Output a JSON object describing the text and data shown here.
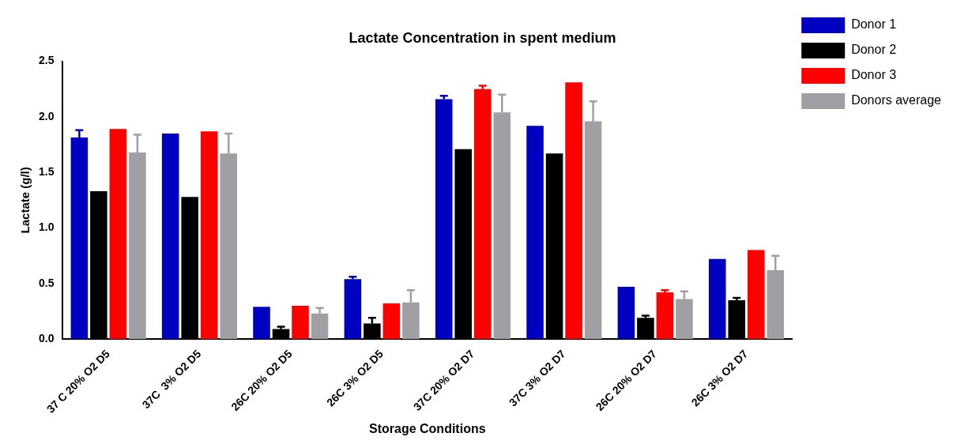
{
  "chart_data": {
    "type": "bar",
    "title": "Lactate Concentration in spent medium",
    "xlabel": "Storage Conditions",
    "ylabel": "Lactate (g/l)",
    "categories": [
      "37 C 20% O2 D5",
      "37C  3% O2 D5",
      "26C 20% O2 D5",
      "26C 3% O2 D5",
      "37C 20% O2 D7",
      "37C 3% O2 D7",
      "26C 20% O2 D7",
      "26C 3% O2 D7"
    ],
    "series": [
      {
        "name": "Donor 1",
        "color": "#0000c0",
        "values": [
          1.815,
          1.85,
          0.29,
          0.54,
          2.16,
          1.92,
          0.47,
          0.72
        ],
        "errors": [
          [
            1.815,
            1.88
          ],
          null,
          null,
          [
            0.54,
            0.56
          ],
          [
            2.16,
            2.19
          ],
          null,
          null,
          null
        ]
      },
      {
        "name": "Donor 2",
        "color": "#000000",
        "values": [
          1.33,
          1.28,
          0.09,
          0.14,
          1.71,
          1.67,
          0.19,
          0.35
        ],
        "errors": [
          null,
          null,
          [
            0.09,
            0.11
          ],
          [
            0.14,
            0.19
          ],
          null,
          null,
          [
            0.19,
            0.21
          ],
          [
            0.35,
            0.37
          ]
        ]
      },
      {
        "name": "Donor 3",
        "color": "#ff0000",
        "values": [
          1.89,
          1.87,
          0.3,
          0.32,
          2.25,
          2.31,
          0.42,
          0.8
        ],
        "errors": [
          null,
          null,
          null,
          null,
          [
            2.25,
            2.28
          ],
          null,
          [
            0.42,
            0.44
          ],
          null
        ]
      },
      {
        "name": "Donors average",
        "color": "#a0a0a4",
        "values": [
          1.68,
          1.67,
          0.23,
          0.33,
          2.04,
          1.96,
          0.36,
          0.62
        ],
        "errors": [
          [
            1.68,
            1.84
          ],
          [
            1.67,
            1.85
          ],
          [
            0.23,
            0.28
          ],
          [
            0.33,
            0.44
          ],
          [
            2.04,
            2.2
          ],
          [
            1.96,
            2.14
          ],
          [
            0.36,
            0.43
          ],
          [
            0.62,
            0.75
          ]
        ]
      }
    ],
    "ylim": [
      0,
      2.5
    ],
    "yticks": [
      {
        "value": 0,
        "label": "0.0"
      },
      0.5,
      {
        "value": 1,
        "label": "1.0"
      },
      1.5,
      {
        "value": 2,
        "label": "2.0"
      },
      2.5
    ],
    "grid": false,
    "legend": "top right"
  }
}
